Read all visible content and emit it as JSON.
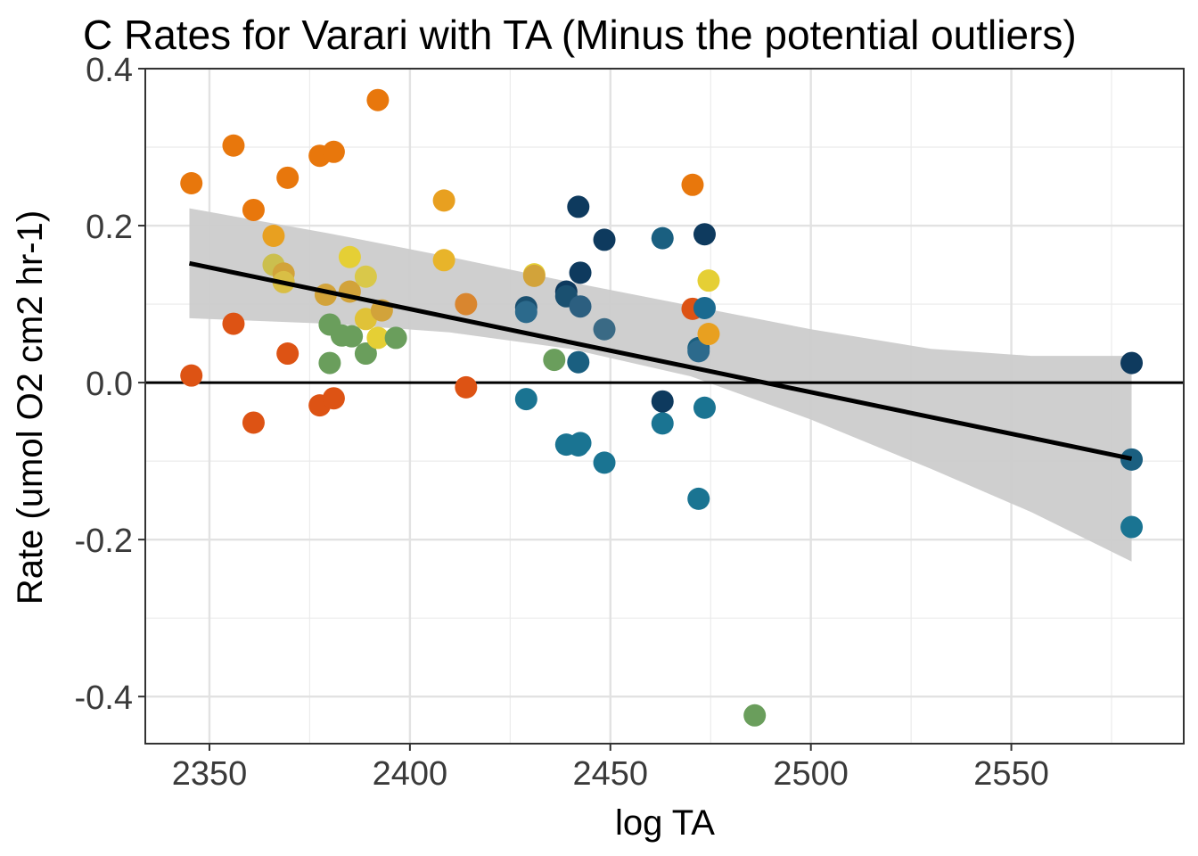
{
  "chart_data": {
    "type": "scatter",
    "title": "C Rates for Varari with TA (Minus the potential outliers)",
    "xlabel": "log TA",
    "ylabel": "Rate (umol O2 cm2 hr-1)",
    "xlim": [
      2334,
      2593
    ],
    "ylim": [
      -0.46,
      0.4
    ],
    "x_ticks": [
      2350,
      2400,
      2450,
      2500,
      2550
    ],
    "x_tick_labels": [
      "2350",
      "2400",
      "2450",
      "2500",
      "2550"
    ],
    "y_ticks": [
      -0.4,
      -0.2,
      0.0,
      0.2,
      0.4
    ],
    "y_tick_labels": [
      "-0.4",
      "-0.2",
      "0.0",
      "0.2",
      "0.4"
    ],
    "grid": true,
    "reference_line_y": 0,
    "trend": {
      "type": "linear",
      "x": [
        2345,
        2580
      ],
      "y": [
        0.152,
        -0.097
      ],
      "ci_upper": [
        [
          2345,
          0.222
        ],
        [
          2380,
          0.19
        ],
        [
          2410,
          0.16
        ],
        [
          2440,
          0.128
        ],
        [
          2470,
          0.098
        ],
        [
          2500,
          0.068
        ],
        [
          2530,
          0.043
        ],
        [
          2555,
          0.034
        ],
        [
          2580,
          0.034
        ]
      ],
      "ci_lower": [
        [
          2345,
          0.082
        ],
        [
          2380,
          0.075
        ],
        [
          2410,
          0.064
        ],
        [
          2440,
          0.043
        ],
        [
          2470,
          0.008
        ],
        [
          2500,
          -0.047
        ],
        [
          2530,
          -0.11
        ],
        [
          2555,
          -0.165
        ],
        [
          2580,
          -0.228
        ]
      ]
    },
    "points": [
      {
        "x": 2345.5,
        "y": 0.254,
        "color": "#E8770C"
      },
      {
        "x": 2345.5,
        "y": 0.009,
        "color": "#DD5314"
      },
      {
        "x": 2356,
        "y": 0.302,
        "color": "#E8770C"
      },
      {
        "x": 2356,
        "y": 0.075,
        "color": "#DD5314"
      },
      {
        "x": 2361,
        "y": 0.22,
        "color": "#E8770C"
      },
      {
        "x": 2361,
        "y": -0.051,
        "color": "#DD5314"
      },
      {
        "x": 2366,
        "y": 0.187,
        "color": "#E8A020"
      },
      {
        "x": 2366,
        "y": 0.15,
        "color": "#CBBF4E"
      },
      {
        "x": 2368.5,
        "y": 0.139,
        "color": "#D2A33A"
      },
      {
        "x": 2368.5,
        "y": 0.128,
        "color": "#D9BE45"
      },
      {
        "x": 2369.5,
        "y": 0.261,
        "color": "#E8770C"
      },
      {
        "x": 2369.5,
        "y": 0.037,
        "color": "#DD5314"
      },
      {
        "x": 2377.5,
        "y": 0.289,
        "color": "#E8770C"
      },
      {
        "x": 2377.5,
        "y": -0.029,
        "color": "#DD5314"
      },
      {
        "x": 2379,
        "y": 0.112,
        "color": "#D2A33A"
      },
      {
        "x": 2380,
        "y": 0.074,
        "color": "#6A9E5C"
      },
      {
        "x": 2380,
        "y": 0.025,
        "color": "#6A9E5C"
      },
      {
        "x": 2381,
        "y": 0.294,
        "color": "#E8770C"
      },
      {
        "x": 2381,
        "y": -0.02,
        "color": "#DD5314"
      },
      {
        "x": 2383,
        "y": 0.06,
        "color": "#6A9E5C"
      },
      {
        "x": 2385,
        "y": 0.16,
        "color": "#E5CF35"
      },
      {
        "x": 2385,
        "y": 0.116,
        "color": "#D2A33A"
      },
      {
        "x": 2385.5,
        "y": 0.059,
        "color": "#6A9E5C"
      },
      {
        "x": 2389,
        "y": 0.135,
        "color": "#D9C84A"
      },
      {
        "x": 2389,
        "y": 0.081,
        "color": "#E0C238"
      },
      {
        "x": 2389,
        "y": 0.037,
        "color": "#6A9E5C"
      },
      {
        "x": 2392,
        "y": 0.36,
        "color": "#E8770C"
      },
      {
        "x": 2392,
        "y": 0.057,
        "color": "#E5CF35"
      },
      {
        "x": 2393,
        "y": 0.092,
        "color": "#D2A33A"
      },
      {
        "x": 2396.5,
        "y": 0.057,
        "color": "#6A9E5C"
      },
      {
        "x": 2408.5,
        "y": 0.232,
        "color": "#E8A020"
      },
      {
        "x": 2408.5,
        "y": 0.156,
        "color": "#E8B42A"
      },
      {
        "x": 2414,
        "y": 0.1,
        "color": "#D9862F"
      },
      {
        "x": 2414,
        "y": -0.006,
        "color": "#DD5314"
      },
      {
        "x": 2429,
        "y": 0.096,
        "color": "#1A5070"
      },
      {
        "x": 2429,
        "y": 0.09,
        "color": "#2C6A8C"
      },
      {
        "x": 2429,
        "y": -0.021,
        "color": "#1A7492"
      },
      {
        "x": 2431,
        "y": 0.138,
        "color": "#E5CF35"
      },
      {
        "x": 2431,
        "y": 0.136,
        "color": "#D2A33A"
      },
      {
        "x": 2436,
        "y": 0.029,
        "color": "#6A9E5C"
      },
      {
        "x": 2439,
        "y": 0.116,
        "color": "#0E3A5E"
      },
      {
        "x": 2439,
        "y": 0.11,
        "color": "#1A5070"
      },
      {
        "x": 2439,
        "y": -0.079,
        "color": "#1A7492"
      },
      {
        "x": 2442,
        "y": 0.224,
        "color": "#0E3A5E"
      },
      {
        "x": 2442,
        "y": 0.026,
        "color": "#1A5F80"
      },
      {
        "x": 2442,
        "y": -0.08,
        "color": "#1A7492"
      },
      {
        "x": 2442.5,
        "y": 0.14,
        "color": "#0E3A5E"
      },
      {
        "x": 2442.5,
        "y": 0.097,
        "color": "#2C5F80"
      },
      {
        "x": 2442.5,
        "y": -0.077,
        "color": "#1A7492"
      },
      {
        "x": 2448.5,
        "y": 0.182,
        "color": "#0E3A5E"
      },
      {
        "x": 2448.5,
        "y": 0.068,
        "color": "#3A6A85"
      },
      {
        "x": 2448.5,
        "y": -0.102,
        "color": "#1A7492"
      },
      {
        "x": 2463,
        "y": 0.184,
        "color": "#1A5F80"
      },
      {
        "x": 2463,
        "y": -0.024,
        "color": "#0E3A5E"
      },
      {
        "x": 2463,
        "y": -0.052,
        "color": "#1A7492"
      },
      {
        "x": 2470.5,
        "y": 0.252,
        "color": "#E8770C"
      },
      {
        "x": 2470.5,
        "y": 0.094,
        "color": "#DD5314"
      },
      {
        "x": 2472,
        "y": 0.044,
        "color": "#1A5F80"
      },
      {
        "x": 2472,
        "y": 0.04,
        "color": "#2C6A8C"
      },
      {
        "x": 2472,
        "y": -0.148,
        "color": "#1A7492"
      },
      {
        "x": 2473.5,
        "y": 0.189,
        "color": "#0E3A5E"
      },
      {
        "x": 2473.5,
        "y": 0.095,
        "color": "#1A6A90"
      },
      {
        "x": 2473.5,
        "y": -0.032,
        "color": "#1A7492"
      },
      {
        "x": 2474.5,
        "y": 0.13,
        "color": "#E5CF35"
      },
      {
        "x": 2474.5,
        "y": 0.062,
        "color": "#E8A020"
      },
      {
        "x": 2486,
        "y": -0.424,
        "color": "#6A9E5C"
      },
      {
        "x": 2580,
        "y": 0.025,
        "color": "#0E3A5E"
      },
      {
        "x": 2580,
        "y": -0.098,
        "color": "#1A5F80"
      },
      {
        "x": 2580,
        "y": -0.184,
        "color": "#1A7492"
      }
    ]
  }
}
